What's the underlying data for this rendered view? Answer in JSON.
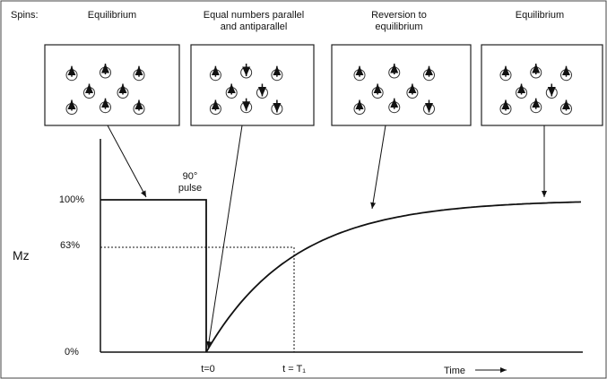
{
  "header": {
    "label": "Spins:"
  },
  "panels": [
    {
      "label": [
        "Equilibrium"
      ]
    },
    {
      "label": [
        "Equal numbers parallel",
        "and antiparallel"
      ]
    },
    {
      "label": [
        "Reversion to",
        "equilibrium"
      ]
    },
    {
      "label": [
        "Equilibrium"
      ]
    }
  ],
  "pulse": [
    "90°",
    "pulse"
  ],
  "y_axis": {
    "label": "Mz",
    "ticks": [
      "100%",
      "63%",
      "0%"
    ]
  },
  "x_axis": {
    "ticks": [
      "t=0",
      "t = T₁"
    ],
    "label": "Time"
  }
}
